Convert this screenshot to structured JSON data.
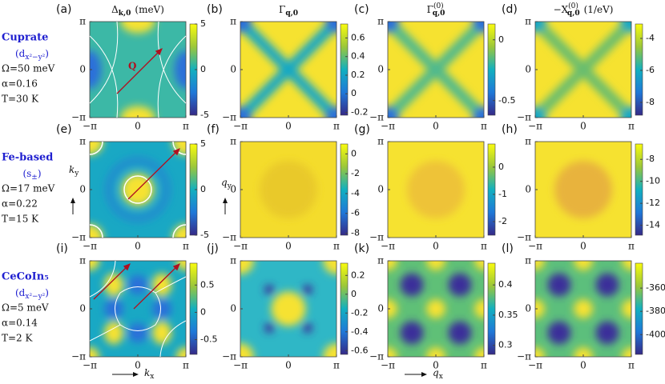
{
  "column_titles": [
    {
      "symbol": "Δ",
      "sub": "k,0",
      "sup": "",
      "unit": "(meV)"
    },
    {
      "symbol": "Γ",
      "sub": "q,0",
      "sup": "",
      "unit": ""
    },
    {
      "symbol": "Γ",
      "sub": "q,0",
      "sup": "(0)",
      "unit": ""
    },
    {
      "symbol": "−X",
      "sub": "q,0",
      "sup": "(0)",
      "unit": "(1/eV)"
    }
  ],
  "rows": [
    {
      "material": "Cuprate",
      "sym_prefix": "(d",
      "sym_sub": "x²−y²",
      "sym_suffix": ")",
      "params": [
        "Ω=50 meV",
        "α=0.16",
        "T=30 K"
      ]
    },
    {
      "material": "Fe-based",
      "sym_prefix": "(s",
      "sym_sub": "±",
      "sym_suffix": ")",
      "params": [
        "Ω=17 meV",
        "α=0.22",
        "T=15 K"
      ]
    },
    {
      "material": "CeCoIn₅",
      "sym_prefix": "(d",
      "sym_sub": "x²−y²",
      "sym_suffix": ")",
      "params": [
        "Ω=5 meV",
        "α=0.14",
        "T=2 K"
      ]
    }
  ],
  "axis_lim": [
    -3.1416,
    3.1416
  ],
  "axis_ticks": [
    {
      "value": -3.1416,
      "label": "−π"
    },
    0,
    {
      "value": 3.1416,
      "label": "π"
    }
  ],
  "k_x": "k",
  "k_x_sub": "x",
  "k_y": "k",
  "k_y_sub": "y",
  "q_x": "q",
  "q_x_sub": "x",
  "q_y": "q",
  "q_y_sub": "y",
  "vector_label": "Q",
  "panels": [
    {
      "label": "(a)",
      "clim": [
        -5,
        5
      ],
      "cticks": [
        -5,
        0,
        5
      ]
    },
    {
      "label": "(b)",
      "clim": [
        -0.23,
        0.75
      ],
      "cticks": [
        -0.2,
        0,
        0.2,
        0.4,
        0.6
      ]
    },
    {
      "label": "(c)",
      "clim": [
        -0.62,
        0.13
      ],
      "cticks": [
        -0.5,
        0
      ]
    },
    {
      "label": "(d)",
      "clim": [
        -8.8,
        -3.1
      ],
      "cticks": [
        -8,
        -6,
        -4
      ]
    },
    {
      "label": "(e)",
      "clim": [
        -5,
        5
      ],
      "cticks": [
        -5,
        0,
        5
      ]
    },
    {
      "label": "(f)",
      "clim": [
        -8.2,
        1
      ],
      "cticks": [
        -8,
        -6,
        -4,
        -2,
        0
      ]
    },
    {
      "label": "(g)",
      "clim": [
        -2.5,
        0.85
      ],
      "cticks": [
        -2,
        -1,
        0
      ]
    },
    {
      "label": "(h)",
      "clim": [
        -14.9,
        -6.6
      ],
      "cticks": [
        -14,
        -12,
        -10,
        -8
      ]
    },
    {
      "label": "(i)",
      "clim": [
        -0.77,
        0.9
      ],
      "cticks": [
        -0.5,
        0,
        0.5
      ]
    },
    {
      "label": "(j)",
      "clim": [
        -0.64,
        0.33
      ],
      "cticks": [
        -0.6,
        -0.4,
        -0.2,
        0,
        0.2
      ]
    },
    {
      "label": "(k)",
      "clim": [
        0.285,
        0.436
      ],
      "cticks": [
        0.3,
        0.35,
        0.4
      ]
    },
    {
      "label": "(l)",
      "clim": [
        -417,
        -338.6
      ],
      "cticks": [
        -400,
        -380,
        -360
      ]
    }
  ]
}
